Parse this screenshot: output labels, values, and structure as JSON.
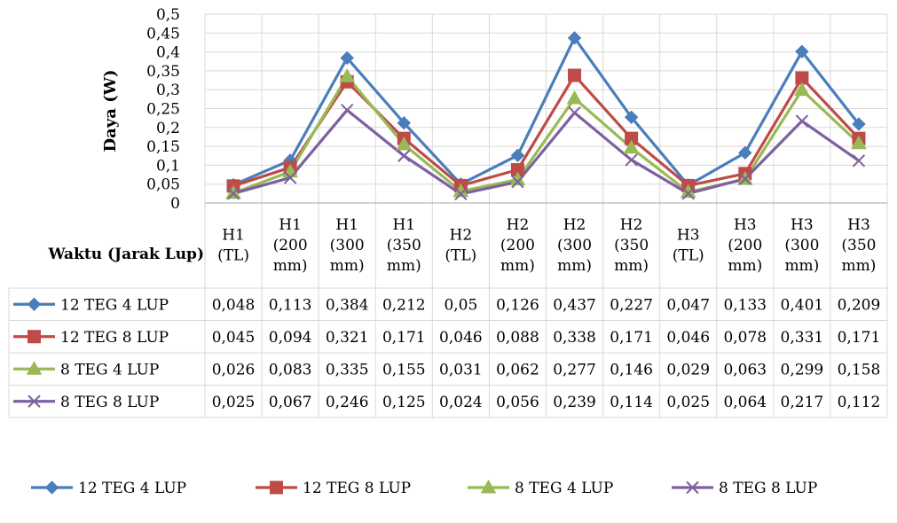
{
  "chart_data": {
    "type": "line",
    "title": "",
    "xlabel": "Waktu (Jarak Lup)",
    "ylabel": "Daya (W)",
    "ylim": [
      0,
      0.5
    ],
    "ytick_labels": [
      "0",
      "0,05",
      "0,1",
      "0,15",
      "0,2",
      "0,25",
      "0,3",
      "0,35",
      "0,4",
      "0,45",
      "0,5"
    ],
    "grid": true,
    "legend": "bottom",
    "categories": [
      [
        "H1",
        "(TL)"
      ],
      [
        "H1",
        "(200",
        "mm)"
      ],
      [
        "H1",
        "(300",
        "mm)"
      ],
      [
        "H1",
        "(350",
        "mm)"
      ],
      [
        "H2",
        "(TL)"
      ],
      [
        "H2",
        "(200",
        "mm)"
      ],
      [
        "H2",
        "(300",
        "mm)"
      ],
      [
        "H2",
        "(350",
        "mm)"
      ],
      [
        "H3",
        "(TL)"
      ],
      [
        "H3",
        "(200",
        "mm)"
      ],
      [
        "H3",
        "(300",
        "mm)"
      ],
      [
        "H3",
        "(350",
        "mm)"
      ]
    ],
    "series": [
      {
        "name": "12 TEG 4 LUP",
        "color": "#4A7EBB",
        "marker": "diamond",
        "values": [
          0.048,
          0.113,
          0.384,
          0.212,
          0.05,
          0.126,
          0.437,
          0.227,
          0.047,
          0.133,
          0.401,
          0.209
        ],
        "labels": [
          "0,048",
          "0,113",
          "0,384",
          "0,212",
          "0,05",
          "0,126",
          "0,437",
          "0,227",
          "0,047",
          "0,133",
          "0,401",
          "0,209"
        ]
      },
      {
        "name": "12 TEG 8 LUP",
        "color": "#BE4B48",
        "marker": "square",
        "values": [
          0.045,
          0.094,
          0.321,
          0.171,
          0.046,
          0.088,
          0.338,
          0.171,
          0.046,
          0.078,
          0.331,
          0.171
        ],
        "labels": [
          "0,045",
          "0,094",
          "0,321",
          "0,171",
          "0,046",
          "0,088",
          "0,338",
          "0,171",
          "0,046",
          "0,078",
          "0,331",
          "0,171"
        ]
      },
      {
        "name": "8 TEG 4 LUP",
        "color": "#98B954",
        "marker": "triangle",
        "values": [
          0.026,
          0.083,
          0.335,
          0.155,
          0.031,
          0.062,
          0.277,
          0.146,
          0.029,
          0.063,
          0.299,
          0.158
        ],
        "labels": [
          "0,026",
          "0,083",
          "0,335",
          "0,155",
          "0,031",
          "0,062",
          "0,277",
          "0,146",
          "0,029",
          "0,063",
          "0,299",
          "0,158"
        ]
      },
      {
        "name": "8 TEG 8 LUP",
        "color": "#7D60A0",
        "marker": "x",
        "values": [
          0.025,
          0.067,
          0.246,
          0.125,
          0.024,
          0.056,
          0.239,
          0.114,
          0.025,
          0.064,
          0.217,
          0.112
        ],
        "labels": [
          "0,025",
          "0,067",
          "0,246",
          "0,125",
          "0,024",
          "0,056",
          "0,239",
          "0,114",
          "0,025",
          "0,064",
          "0,217",
          "0,112"
        ]
      }
    ]
  }
}
